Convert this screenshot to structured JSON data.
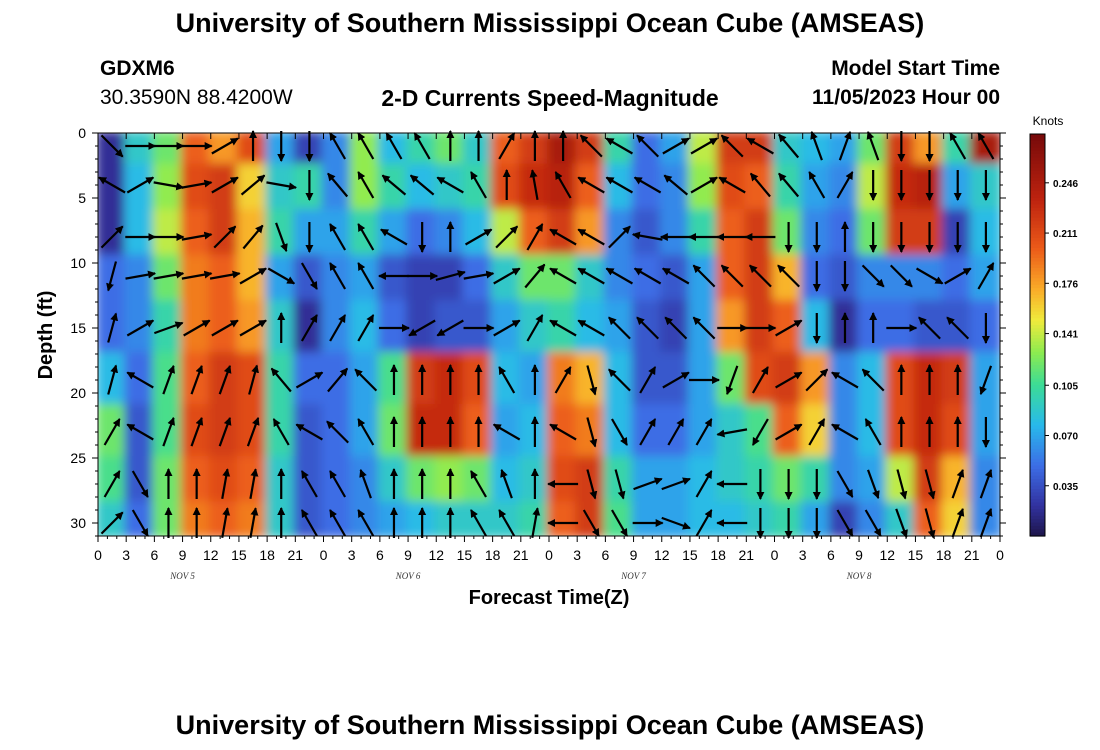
{
  "header": {
    "title": "University of Southern Mississippi Ocean Cube (AMSEAS)",
    "station": "GDXM6",
    "coords": "30.3590N  88.4200W",
    "subtitle": "2-D Currents Speed-Magnitude",
    "model_start_label": "Model Start Time",
    "model_start_value": "11/05/2023 Hour 00",
    "footer_title": "University of Southern Mississippi Ocean Cube (AMSEAS)"
  },
  "chart_data": {
    "type": "heatmap",
    "title": "2-D Currents Speed-Magnitude",
    "xlabel": "Forecast Time(Z)",
    "ylabel": "Depth (ft)",
    "x_hours": [
      0,
      96
    ],
    "x_tick_labels": [
      "0",
      "3",
      "6",
      "9",
      "12",
      "15",
      "18",
      "21",
      "0",
      "3",
      "6",
      "9",
      "12",
      "15",
      "18",
      "21",
      "0",
      "3",
      "6",
      "9",
      "12",
      "15",
      "18",
      "21",
      "0",
      "3",
      "6",
      "9",
      "12",
      "15",
      "18",
      "21",
      "0"
    ],
    "day_labels": [
      {
        "hour": 9,
        "text": "NOV 5"
      },
      {
        "hour": 33,
        "text": "NOV 6"
      },
      {
        "hour": 57,
        "text": "NOV 7"
      },
      {
        "hour": 81,
        "text": "NOV 8"
      }
    ],
    "y_ticks": [
      0,
      5,
      10,
      15,
      20,
      25,
      30
    ],
    "ylim": [
      0,
      31
    ],
    "colorbar": {
      "unit": "Knots",
      "ticks": [
        0.035,
        0.07,
        0.105,
        0.141,
        0.176,
        0.211,
        0.246
      ],
      "tick_labels": [
        "0.035",
        "0.070",
        "0.105",
        "0.141",
        "0.176",
        "0.211",
        "0.246"
      ],
      "range": [
        0.0,
        0.28
      ]
    },
    "times": [
      1.5,
      4.5,
      7.5,
      10.5,
      13.5,
      16.5,
      19.5,
      22.5,
      25.5,
      28.5,
      31.5,
      34.5,
      37.5,
      40.5,
      43.5,
      46.5,
      49.5,
      52.5,
      55.5,
      58.5,
      61.5,
      64.5,
      67.5,
      70.5,
      73.5,
      76.5,
      79.5,
      82.5,
      85.5,
      88.5,
      91.5,
      94.5
    ],
    "depths": [
      1,
      4,
      8,
      11,
      15,
      19,
      23,
      27,
      30
    ],
    "speed_knots": [
      [
        0.02,
        0.09,
        0.12,
        0.2,
        0.18,
        0.21,
        0.07,
        0.03,
        0.06,
        0.13,
        0.08,
        0.1,
        0.12,
        0.09,
        0.2,
        0.22,
        0.25,
        0.22,
        0.1,
        0.05,
        0.07,
        0.14,
        0.22,
        0.22,
        0.09,
        0.08,
        0.07,
        0.12,
        0.22,
        0.18,
        0.1,
        0.25
      ],
      [
        0.02,
        0.08,
        0.13,
        0.21,
        0.22,
        0.16,
        0.09,
        0.1,
        0.06,
        0.13,
        0.1,
        0.08,
        0.09,
        0.1,
        0.21,
        0.23,
        0.24,
        0.2,
        0.08,
        0.05,
        0.06,
        0.13,
        0.21,
        0.2,
        0.1,
        0.07,
        0.06,
        0.14,
        0.23,
        0.24,
        0.07,
        0.09
      ],
      [
        0.02,
        0.08,
        0.14,
        0.2,
        0.22,
        0.17,
        0.1,
        0.07,
        0.07,
        0.1,
        0.07,
        0.05,
        0.06,
        0.08,
        0.14,
        0.2,
        0.22,
        0.18,
        0.06,
        0.04,
        0.06,
        0.1,
        0.2,
        0.22,
        0.12,
        0.06,
        0.05,
        0.12,
        0.22,
        0.22,
        0.03,
        0.08
      ],
      [
        0.05,
        0.06,
        0.12,
        0.19,
        0.2,
        0.17,
        0.07,
        0.04,
        0.06,
        0.07,
        0.04,
        0.03,
        0.03,
        0.05,
        0.09,
        0.12,
        0.12,
        0.09,
        0.06,
        0.05,
        0.04,
        0.07,
        0.2,
        0.22,
        0.17,
        0.05,
        0.04,
        0.06,
        0.06,
        0.06,
        0.05,
        0.07
      ],
      [
        0.05,
        0.06,
        0.1,
        0.19,
        0.2,
        0.18,
        0.09,
        0.02,
        0.06,
        0.08,
        0.05,
        0.03,
        0.04,
        0.04,
        0.07,
        0.09,
        0.1,
        0.08,
        0.07,
        0.04,
        0.03,
        0.07,
        0.18,
        0.22,
        0.2,
        0.08,
        0.02,
        0.05,
        0.05,
        0.04,
        0.04,
        0.05
      ],
      [
        0.08,
        0.05,
        0.11,
        0.2,
        0.22,
        0.21,
        0.1,
        0.05,
        0.05,
        0.07,
        0.11,
        0.22,
        0.23,
        0.21,
        0.08,
        0.07,
        0.19,
        0.17,
        0.08,
        0.04,
        0.04,
        0.07,
        0.12,
        0.21,
        0.22,
        0.18,
        0.06,
        0.08,
        0.21,
        0.23,
        0.22,
        0.07
      ],
      [
        0.12,
        0.04,
        0.11,
        0.21,
        0.22,
        0.21,
        0.1,
        0.04,
        0.05,
        0.07,
        0.12,
        0.23,
        0.23,
        0.2,
        0.07,
        0.08,
        0.2,
        0.19,
        0.08,
        0.05,
        0.05,
        0.07,
        0.09,
        0.11,
        0.2,
        0.16,
        0.06,
        0.08,
        0.21,
        0.23,
        0.21,
        0.07
      ],
      [
        0.11,
        0.04,
        0.12,
        0.2,
        0.21,
        0.2,
        0.09,
        0.04,
        0.05,
        0.06,
        0.09,
        0.12,
        0.13,
        0.12,
        0.08,
        0.09,
        0.21,
        0.22,
        0.1,
        0.07,
        0.07,
        0.08,
        0.09,
        0.1,
        0.12,
        0.1,
        0.06,
        0.07,
        0.14,
        0.22,
        0.17,
        0.06
      ],
      [
        0.09,
        0.05,
        0.12,
        0.19,
        0.2,
        0.19,
        0.09,
        0.04,
        0.05,
        0.06,
        0.07,
        0.08,
        0.09,
        0.09,
        0.09,
        0.1,
        0.2,
        0.22,
        0.11,
        0.07,
        0.07,
        0.08,
        0.08,
        0.09,
        0.1,
        0.07,
        0.03,
        0.06,
        0.09,
        0.2,
        0.16,
        0.06
      ]
    ],
    "direction_deg": [
      [
        135,
        90,
        90,
        90,
        60,
        0,
        180,
        180,
        330,
        330,
        330,
        330,
        0,
        0,
        30,
        0,
        0,
        315,
        300,
        315,
        60,
        60,
        315,
        300,
        320,
        340,
        20,
        340,
        180,
        180,
        330,
        330
      ],
      [
        300,
        60,
        100,
        80,
        60,
        50,
        100,
        180,
        320,
        330,
        310,
        310,
        300,
        330,
        0,
        350,
        330,
        300,
        300,
        300,
        310,
        60,
        300,
        320,
        320,
        330,
        30,
        180,
        180,
        180,
        180,
        180
      ],
      [
        45,
        90,
        90,
        80,
        45,
        40,
        160,
        180,
        330,
        330,
        300,
        180,
        0,
        60,
        45,
        30,
        300,
        300,
        45,
        280,
        270,
        270,
        270,
        270,
        180,
        180,
        0,
        180,
        180,
        180,
        180,
        180
      ],
      [
        195,
        80,
        80,
        80,
        80,
        60,
        120,
        150,
        330,
        330,
        270,
        90,
        75,
        80,
        60,
        40,
        300,
        300,
        300,
        300,
        300,
        315,
        315,
        315,
        315,
        180,
        180,
        135,
        135,
        120,
        60,
        30
      ],
      [
        15,
        60,
        70,
        60,
        60,
        60,
        0,
        30,
        30,
        30,
        90,
        240,
        240,
        90,
        60,
        30,
        300,
        300,
        315,
        315,
        315,
        315,
        90,
        90,
        60,
        180,
        0,
        0,
        90,
        315,
        315,
        180
      ],
      [
        15,
        300,
        20,
        20,
        20,
        15,
        320,
        60,
        40,
        315,
        0,
        0,
        0,
        0,
        330,
        0,
        30,
        165,
        315,
        30,
        60,
        90,
        200,
        30,
        60,
        45,
        300,
        315,
        0,
        0,
        0,
        200
      ],
      [
        30,
        300,
        20,
        20,
        20,
        20,
        330,
        300,
        315,
        330,
        0,
        0,
        0,
        0,
        300,
        0,
        300,
        165,
        150,
        30,
        30,
        30,
        260,
        210,
        60,
        30,
        300,
        330,
        0,
        0,
        0,
        180
      ],
      [
        30,
        150,
        0,
        0,
        10,
        10,
        0,
        330,
        330,
        340,
        0,
        0,
        0,
        330,
        340,
        0,
        270,
        165,
        165,
        70,
        70,
        30,
        270,
        180,
        180,
        180,
        150,
        160,
        165,
        165,
        20,
        20
      ],
      [
        45,
        150,
        0,
        0,
        10,
        10,
        0,
        330,
        330,
        330,
        0,
        0,
        0,
        330,
        330,
        10,
        270,
        150,
        150,
        90,
        110,
        30,
        270,
        180,
        180,
        180,
        150,
        150,
        160,
        165,
        20,
        20
      ]
    ]
  }
}
